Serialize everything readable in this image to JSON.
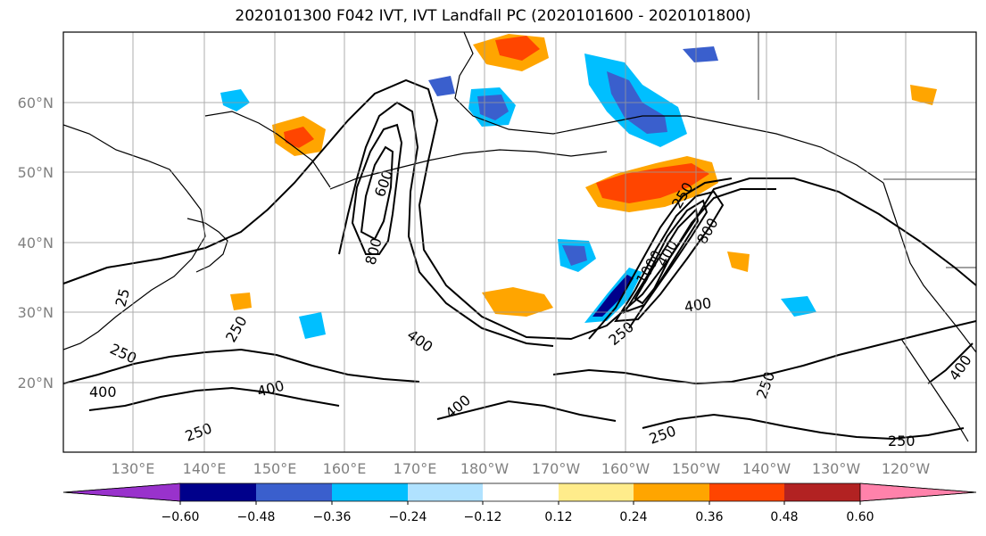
{
  "title": "2020101300 F042 IVT, IVT Landfall PC (2020101600 - 2020101800)",
  "lat_labels": [
    "60°N",
    "50°N",
    "40°N",
    "30°N",
    "20°N"
  ],
  "lon_labels": [
    "130°E",
    "140°E",
    "150°E",
    "160°E",
    "170°E",
    "180°W",
    "170°W",
    "160°W",
    "150°W",
    "140°W",
    "130°W",
    "120°W"
  ],
  "contour_labels": [
    "600",
    "800",
    "400",
    "250",
    "250",
    "400",
    "400",
    "250",
    "400",
    "250",
    "250",
    "800",
    "1000",
    "400",
    "250",
    "250",
    "250",
    "400",
    "400",
    "25"
  ],
  "colorbar": {
    "tick_labels": [
      "−0.60",
      "−0.48",
      "−0.36",
      "−0.24",
      "−0.12",
      "0.12",
      "0.24",
      "0.36",
      "0.48",
      "0.60"
    ],
    "colors": [
      "#9932cc",
      "#00008b",
      "#3a5fcd",
      "#00bfff",
      "#b0e2ff",
      "#ffffff",
      "#ffec8b",
      "#ffa500",
      "#ff4500",
      "#b22222",
      "#ff82ab"
    ]
  },
  "chart_data": {
    "type": "heatmap",
    "variable": "IVT Landfall PC",
    "overlay": "IVT contours",
    "contour_levels": [
      250,
      400,
      600,
      800,
      1000
    ],
    "xlim": [
      "120°E",
      "115°W"
    ],
    "ylim": [
      "10°N",
      "70°N"
    ],
    "grid": true,
    "colorbar_levels": [
      -0.6,
      -0.48,
      -0.36,
      -0.24,
      -0.12,
      0.12,
      0.24,
      0.36,
      0.48,
      0.6
    ],
    "colorbar_extend": "both"
  }
}
